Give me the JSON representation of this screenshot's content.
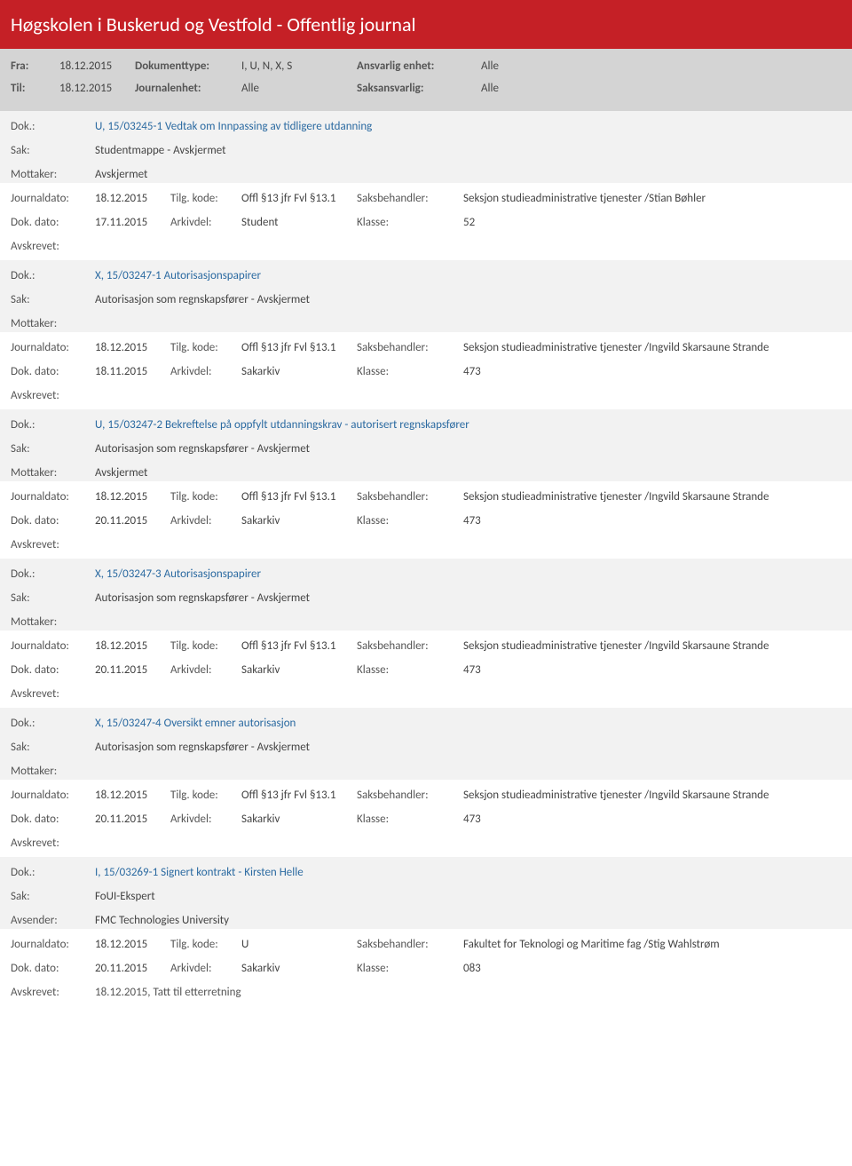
{
  "header": {
    "title": "Høgskolen i Buskerud og Vestfold - Offentlig journal",
    "title_bg": "#c52026",
    "title_color": "#ffffff",
    "gray_bg": "#d4d4d4",
    "fra_label": "Fra:",
    "fra_value": "18.12.2015",
    "til_label": "Til:",
    "til_value": "18.12.2015",
    "doktype_label": "Dokumenttype:",
    "doktype_value": "I, U, N, X, S",
    "journalenhet_label": "Journalenhet:",
    "journalenhet_value": "Alle",
    "ansvarlig_enhet_label": "Ansvarlig enhet:",
    "ansvarlig_enhet_value": "Alle",
    "saksansvarlig_label": "Saksansvarlig:",
    "saksansvarlig_value": "Alle"
  },
  "labels": {
    "dok": "Dok.:",
    "sak": "Sak:",
    "mottaker": "Mottaker:",
    "avsender": "Avsender:",
    "journaldato": "Journaldato:",
    "tilg_kode": "Tilg. kode:",
    "saksbehandler": "Saksbehandler:",
    "dok_dato": "Dok. dato:",
    "arkivdel": "Arkivdel:",
    "klasse": "Klasse:",
    "avskrevet": "Avskrevet:"
  },
  "entries": [
    {
      "dok": "U, 15/03245-1 Vedtak om Innpassing av tidligere utdanning",
      "sak": "Studentmappe - Avskjermet",
      "mottaker": "Avskjermet",
      "journaldato": "18.12.2015",
      "tilg_kode": "Offl §13 jfr Fvl §13.1",
      "saksbehandler": "Seksjon studieadministrative tjenester /Stian Bøhler",
      "dok_dato": "17.11.2015",
      "arkivdel": "Student",
      "klasse": "52",
      "avskrevet": ""
    },
    {
      "dok": "X, 15/03247-1 Autorisasjonspapirer",
      "sak": "Autorisasjon som regnskapsfører - Avskjermet",
      "mottaker": "",
      "journaldato": "18.12.2015",
      "tilg_kode": "Offl §13 jfr Fvl §13.1",
      "saksbehandler": "Seksjon studieadministrative tjenester /Ingvild Skarsaune Strande",
      "dok_dato": "18.11.2015",
      "arkivdel": "Sakarkiv",
      "klasse": "473",
      "avskrevet": ""
    },
    {
      "dok": "U, 15/03247-2 Bekreftelse på oppfylt utdanningskrav -  autorisert regnskapsfører",
      "sak": "Autorisasjon som regnskapsfører - Avskjermet",
      "mottaker": "Avskjermet",
      "journaldato": "18.12.2015",
      "tilg_kode": "Offl §13 jfr Fvl §13.1",
      "saksbehandler": "Seksjon studieadministrative tjenester /Ingvild Skarsaune Strande",
      "dok_dato": "20.11.2015",
      "arkivdel": "Sakarkiv",
      "klasse": "473",
      "avskrevet": ""
    },
    {
      "dok": "X, 15/03247-3 Autorisasjonspapirer",
      "sak": "Autorisasjon som regnskapsfører - Avskjermet",
      "mottaker": "",
      "journaldato": "18.12.2015",
      "tilg_kode": "Offl §13 jfr Fvl §13.1",
      "saksbehandler": "Seksjon studieadministrative tjenester /Ingvild Skarsaune Strande",
      "dok_dato": "20.11.2015",
      "arkivdel": "Sakarkiv",
      "klasse": "473",
      "avskrevet": ""
    },
    {
      "dok": "X, 15/03247-4 Oversikt emner autorisasjon",
      "sak": "Autorisasjon som regnskapsfører - Avskjermet",
      "mottaker": "",
      "journaldato": "18.12.2015",
      "tilg_kode": "Offl §13 jfr Fvl §13.1",
      "saksbehandler": "Seksjon studieadministrative tjenester /Ingvild Skarsaune Strande",
      "dok_dato": "20.11.2015",
      "arkivdel": "Sakarkiv",
      "klasse": "473",
      "avskrevet": ""
    },
    {
      "dok": "I, 15/03269-1 Signert kontrakt - Kirsten Helle",
      "sak": "FoUI-Ekspert",
      "avsender": "FMC Technologies University",
      "journaldato": "18.12.2015",
      "tilg_kode": "U",
      "saksbehandler": "Fakultet for Teknologi og Maritime fag /Stig Wahlstrøm",
      "dok_dato": "20.11.2015",
      "arkivdel": "Sakarkiv",
      "klasse": "083",
      "avskrevet": "18.12.2015, Tatt til etterretning"
    }
  ],
  "colors": {
    "pale_bg": "#f2f2f2",
    "link_blue": "#2b6aa1",
    "text_gray": "#555555"
  }
}
